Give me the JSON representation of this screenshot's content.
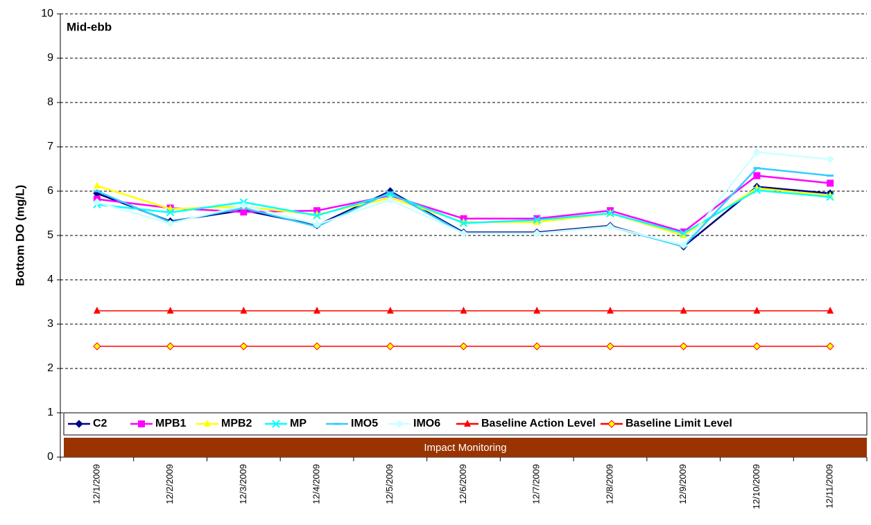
{
  "chart_data": {
    "type": "line",
    "annotation": "Mid-ebb",
    "y_label": "Bottom DO (mg/L)",
    "band_label": "Impact Monitoring",
    "band_color": "#993300",
    "categories": [
      "12/1/2009",
      "12/2/2009",
      "12/3/2009",
      "12/4/2009",
      "12/5/2009",
      "12/6/2009",
      "12/7/2009",
      "12/8/2009",
      "12/9/2009",
      "12/10/2009",
      "12/11/2009"
    ],
    "series": [
      {
        "name": "C2",
        "color": "#000080",
        "marker": "diamond",
        "values": [
          5.95,
          5.32,
          5.57,
          5.23,
          6.0,
          5.07,
          5.07,
          5.22,
          4.75,
          6.1,
          5.95
        ]
      },
      {
        "name": "MPB1",
        "color": "#ff00ff",
        "marker": "square",
        "values": [
          5.82,
          5.62,
          5.53,
          5.56,
          5.9,
          5.38,
          5.38,
          5.56,
          5.08,
          6.35,
          6.18
        ]
      },
      {
        "name": "MPB2",
        "color": "#ffff00",
        "marker": "triangle",
        "values": [
          6.12,
          5.6,
          5.65,
          5.47,
          5.85,
          5.3,
          5.3,
          5.5,
          5.0,
          6.07,
          5.9
        ]
      },
      {
        "name": "MP",
        "color": "#00ffff",
        "marker": "x",
        "values": [
          5.7,
          5.52,
          5.75,
          5.45,
          5.93,
          5.28,
          5.35,
          5.5,
          5.05,
          6.02,
          5.87
        ]
      },
      {
        "name": "IMO5",
        "color": "#33ccff",
        "marker": "dash",
        "values": [
          6.0,
          5.3,
          5.62,
          5.2,
          5.97,
          5.05,
          5.05,
          5.2,
          4.75,
          6.52,
          6.35
        ]
      },
      {
        "name": "IMO6",
        "color": "#ccffff",
        "marker": "diamond",
        "values": [
          5.75,
          5.27,
          5.68,
          5.25,
          5.8,
          5.05,
          5.05,
          5.2,
          4.78,
          6.88,
          6.72
        ]
      },
      {
        "name": "Baseline Action Level",
        "color": "#ff0000",
        "marker": "triangle",
        "values": [
          3.3,
          3.3,
          3.3,
          3.3,
          3.3,
          3.3,
          3.3,
          3.3,
          3.3,
          3.3,
          3.3
        ]
      },
      {
        "name": "Baseline Limit Level",
        "color": "#ff0000",
        "marker": "diamond",
        "marker_fill": "#ffff00",
        "values": [
          2.5,
          2.5,
          2.5,
          2.5,
          2.5,
          2.5,
          2.5,
          2.5,
          2.5,
          2.5,
          2.5
        ]
      }
    ],
    "ylim": [
      0,
      10
    ],
    "yticks": [
      0,
      1,
      2,
      3,
      4,
      5,
      6,
      7,
      8,
      9,
      10
    ],
    "grid": true
  }
}
